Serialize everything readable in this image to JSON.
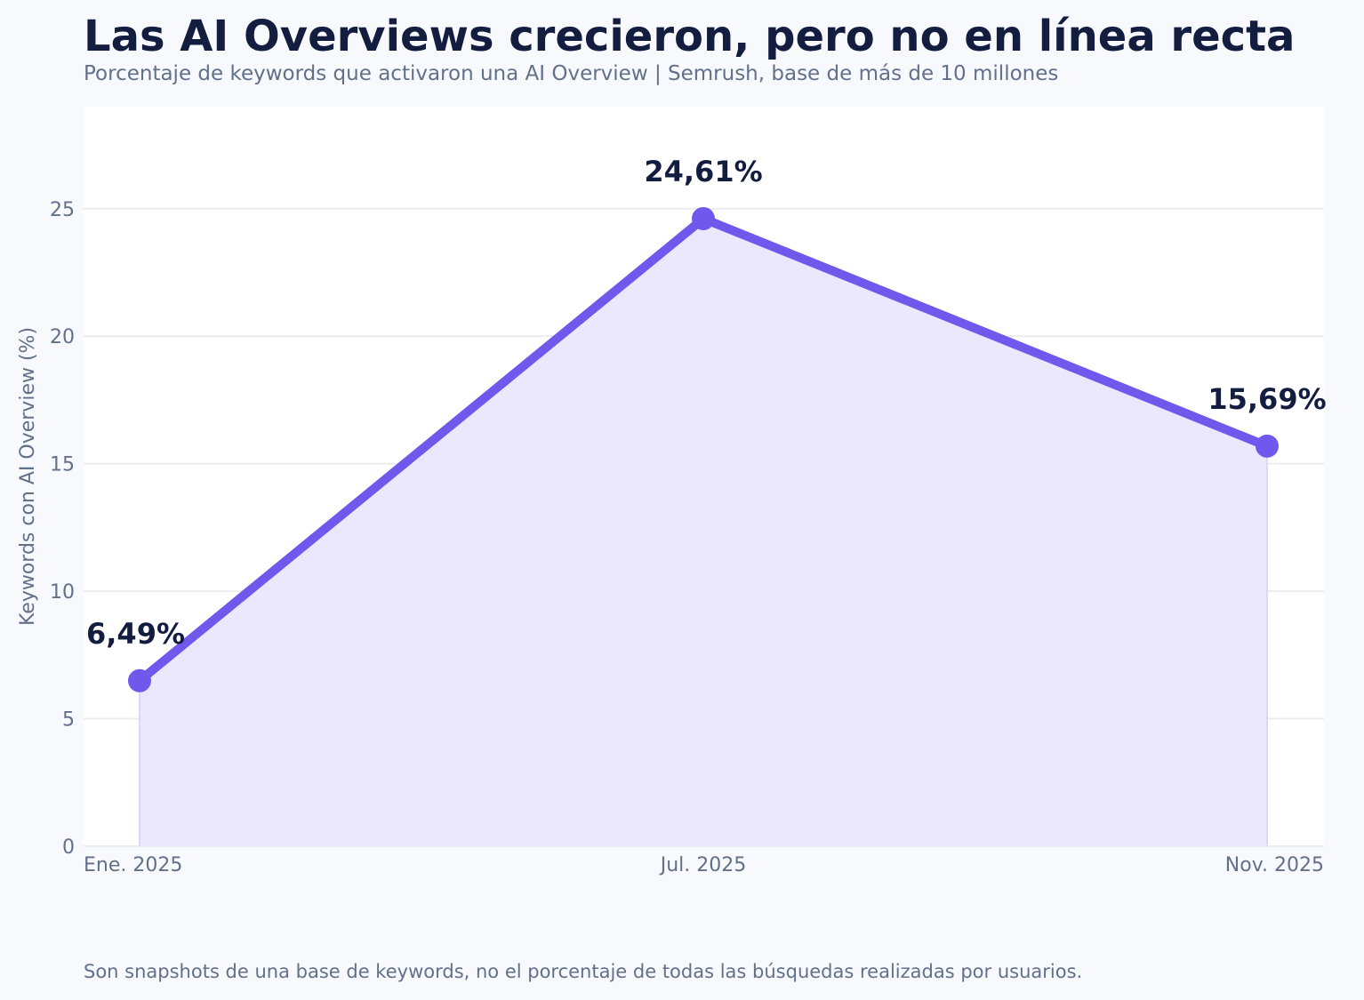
{
  "title": "Las AI Overviews crecieron, pero no en línea recta",
  "subtitle": "Porcentaje de keywords que activaron una AI Overview | Semrush, base de más de 10 millones",
  "footnote": "Son snapshots de una base de keywords, no el porcentaje de todas las búsquedas realizadas por usuarios.",
  "colors": {
    "line": "#7158ec",
    "area": "#ebe7fc",
    "grid": "#e9ecf1",
    "plot_bg": "#ffffff",
    "text_dark": "#131d3f",
    "text_muted": "#62708a"
  },
  "chart_data": {
    "type": "area",
    "title": "Las AI Overviews crecieron, pero no en línea recta",
    "subtitle": "Porcentaje de keywords que activaron una AI Overview | Semrush, base de más de 10 millones",
    "xlabel": "",
    "ylabel": "Keywords con AI Overview (%)",
    "categories": [
      "Ene. 2025",
      "Jul. 2025",
      "Nov. 2025"
    ],
    "series": [
      {
        "values": [
          6.49,
          24.61,
          15.69
        ],
        "labels": [
          "6,49%",
          "24,61%",
          "15,69%"
        ]
      }
    ],
    "ylim": [
      0,
      29
    ],
    "yticks": [
      0,
      5,
      10,
      15,
      20,
      25
    ],
    "grid": "horizontal",
    "legend": "none"
  }
}
